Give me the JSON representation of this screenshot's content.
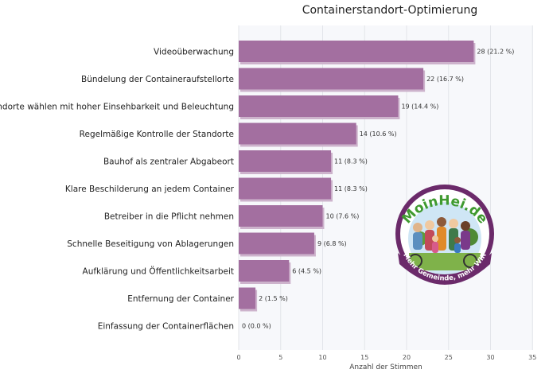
{
  "chart_data": {
    "type": "bar",
    "orientation": "horizontal",
    "title": "Containerstandort-Optimierung",
    "xlabel": "Anzahl der Stimmen",
    "ylabel": "",
    "xlim": [
      0,
      35
    ],
    "xticks": [
      "0",
      "5",
      "10",
      "15",
      "20",
      "25",
      "30",
      "35"
    ],
    "grid": true,
    "categories": [
      "Videoüberwachung",
      "Bündelung der Containeraufstellorte",
      "Standorte wählen mit hoher Einsehbarkeit und Beleuchtung",
      "Regelmäßige Kontrolle der Standorte",
      "Bauhof als zentraler Abgabeort",
      "Klare Beschilderung an jedem Container",
      "Betreiber in die Pflicht nehmen",
      "Schnelle Beseitigung von Ablagerungen",
      "Aufklärung und Öffentlichkeitsarbeit",
      "Entfernung der Container",
      "Einfassung der Containerflächen"
    ],
    "values": [
      28,
      22,
      19,
      14,
      11,
      11,
      10,
      9,
      6,
      2,
      0
    ],
    "data_labels": [
      "28 (21.2 %)",
      "22 (16.7 %)",
      "19 (14.4 %)",
      "14 (10.6 %)",
      "11 (8.3 %)",
      "11 (8.3 %)",
      "10 (7.6 %)",
      "9 (6.8 %)",
      "6 (4.5 %)",
      "2 (1.5 %)",
      "0 (0.0 %)"
    ],
    "bar_color": "#a36fa0",
    "bar_shadow_color": "#cdb3cc"
  },
  "logo": {
    "name": "MoinHei.de",
    "tagline": "Mehr Gemeinde, mehr WIR",
    "ring_color": "#6b2a6a",
    "accent_color": "#3f9a2f"
  }
}
